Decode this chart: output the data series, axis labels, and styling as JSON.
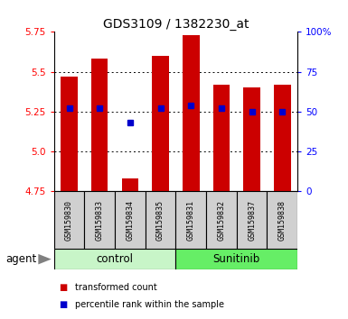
{
  "title": "GDS3109 / 1382230_at",
  "samples": [
    "GSM159830",
    "GSM159833",
    "GSM159834",
    "GSM159835",
    "GSM159831",
    "GSM159832",
    "GSM159837",
    "GSM159838"
  ],
  "bar_values": [
    5.47,
    5.58,
    4.83,
    5.6,
    5.73,
    5.42,
    5.4,
    5.42
  ],
  "percentile_values": [
    52,
    52,
    43,
    52,
    54,
    52,
    50,
    50
  ],
  "group_colors": {
    "control": "#c8f5c8",
    "Sunitinib": "#66ee66"
  },
  "bar_color": "#cc0000",
  "dot_color": "#0000cc",
  "ylim_left": [
    4.75,
    5.75
  ],
  "ylim_right": [
    0,
    100
  ],
  "yticks_left": [
    4.75,
    5.0,
    5.25,
    5.5,
    5.75
  ],
  "yticks_right": [
    0,
    25,
    50,
    75,
    100
  ],
  "ytick_labels_right": [
    "0",
    "25",
    "50",
    "75",
    "100%"
  ],
  "grid_values": [
    5.0,
    5.25,
    5.5
  ],
  "bar_bottom": 4.75,
  "bar_width": 0.55,
  "sample_bg": "#d0d0d0",
  "legend_items": [
    {
      "label": "transformed count",
      "color": "#cc0000"
    },
    {
      "label": "percentile rank within the sample",
      "color": "#0000cc"
    }
  ]
}
